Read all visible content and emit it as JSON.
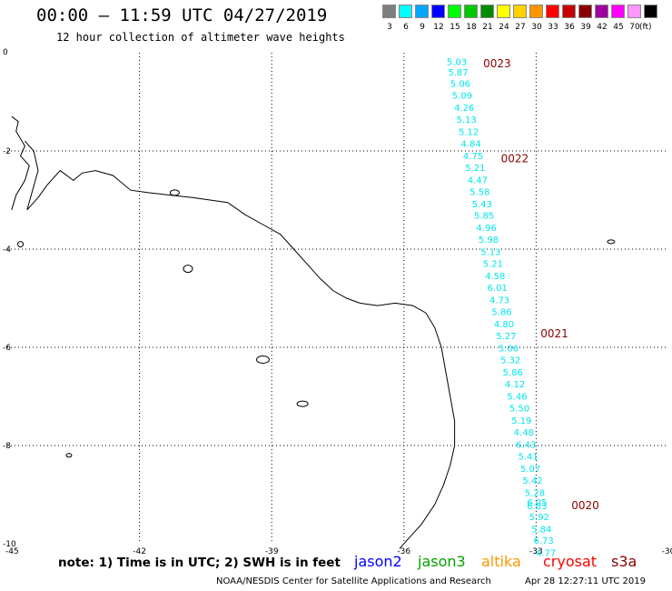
{
  "header": {
    "title": "00:00 – 11:59 UTC 04/27/2019",
    "subtitle": "12 hour collection of altimeter wave heights"
  },
  "color_scale": {
    "unit": "(ft)",
    "bins": [
      {
        "label": "3",
        "color": "#7f7f7f"
      },
      {
        "label": "6",
        "color": "#00ffff"
      },
      {
        "label": "9",
        "color": "#00a8ff"
      },
      {
        "label": "12",
        "color": "#0000ff"
      },
      {
        "label": "15",
        "color": "#00ff00"
      },
      {
        "label": "18",
        "color": "#00c800"
      },
      {
        "label": "21",
        "color": "#008c00"
      },
      {
        "label": "24",
        "color": "#ffff00"
      },
      {
        "label": "27",
        "color": "#ffd200"
      },
      {
        "label": "30",
        "color": "#ff9600"
      },
      {
        "label": "33",
        "color": "#ff0000"
      },
      {
        "label": "36",
        "color": "#c80000"
      },
      {
        "label": "39",
        "color": "#8c0000"
      },
      {
        "label": "42",
        "color": "#a000a0"
      },
      {
        "label": "45",
        "color": "#ff00ff"
      },
      {
        "label": "70",
        "color": "#ff96ff"
      },
      {
        "label": "",
        "color": "#000000"
      }
    ]
  },
  "map": {
    "lon_ticks": [
      "-45",
      "-42",
      "-39",
      "-36",
      "-33",
      "-30"
    ],
    "lat_ticks": [
      "0",
      "-2",
      "-4",
      "-6",
      "-8",
      "-10"
    ],
    "lon_range": [
      -45,
      -30
    ],
    "lat_range": [
      -10,
      0
    ],
    "measurement_color": "#00e5ee",
    "time_label_color": "#8b0000",
    "measurements": [
      {
        "lon": -34.8,
        "lat": -0.18,
        "value": "5.03"
      },
      {
        "lon": -34.77,
        "lat": -0.39,
        "value": "5.87"
      },
      {
        "lon": -34.72,
        "lat": -0.62,
        "value": "5.06"
      },
      {
        "lon": -34.68,
        "lat": -0.86,
        "value": "5.09"
      },
      {
        "lon": -34.63,
        "lat": -1.11,
        "value": "4.26"
      },
      {
        "lon": -34.58,
        "lat": -1.35,
        "value": "5.13"
      },
      {
        "lon": -34.53,
        "lat": -1.6,
        "value": "5.12"
      },
      {
        "lon": -34.48,
        "lat": -1.84,
        "value": "4.84"
      },
      {
        "lon": -34.43,
        "lat": -2.09,
        "value": "4.75"
      },
      {
        "lon": -34.38,
        "lat": -2.33,
        "value": "5.21"
      },
      {
        "lon": -34.33,
        "lat": -2.58,
        "value": "4.47"
      },
      {
        "lon": -34.28,
        "lat": -2.82,
        "value": "5.58"
      },
      {
        "lon": -34.23,
        "lat": -3.07,
        "value": "5.43"
      },
      {
        "lon": -34.18,
        "lat": -3.31,
        "value": "5.85"
      },
      {
        "lon": -34.13,
        "lat": -3.56,
        "value": "4.96"
      },
      {
        "lon": -34.08,
        "lat": -3.8,
        "value": "5.98"
      },
      {
        "lon": -34.03,
        "lat": -4.05,
        "value": "5.13"
      },
      {
        "lon": -33.98,
        "lat": -4.29,
        "value": "5.21"
      },
      {
        "lon": -33.93,
        "lat": -4.54,
        "value": "4.58"
      },
      {
        "lon": -33.88,
        "lat": -4.78,
        "value": "6.01"
      },
      {
        "lon": -33.83,
        "lat": -5.03,
        "value": "4.73"
      },
      {
        "lon": -33.78,
        "lat": -5.27,
        "value": "5.86"
      },
      {
        "lon": -33.73,
        "lat": -5.52,
        "value": "4.80"
      },
      {
        "lon": -33.68,
        "lat": -5.76,
        "value": "5.27"
      },
      {
        "lon": -33.63,
        "lat": -6.01,
        "value": "5.06"
      },
      {
        "lon": -33.58,
        "lat": -6.25,
        "value": "5.32"
      },
      {
        "lon": -33.53,
        "lat": -6.5,
        "value": "5.86"
      },
      {
        "lon": -33.48,
        "lat": -6.74,
        "value": "4.12"
      },
      {
        "lon": -33.43,
        "lat": -6.99,
        "value": "5.46"
      },
      {
        "lon": -33.38,
        "lat": -7.23,
        "value": "5.50"
      },
      {
        "lon": -33.33,
        "lat": -7.48,
        "value": "5.19"
      },
      {
        "lon": -33.28,
        "lat": -7.72,
        "value": "4.48"
      },
      {
        "lon": -33.23,
        "lat": -7.97,
        "value": "6.43"
      },
      {
        "lon": -33.18,
        "lat": -8.21,
        "value": "5.41"
      },
      {
        "lon": -33.13,
        "lat": -8.46,
        "value": "5.07"
      },
      {
        "lon": -33.08,
        "lat": -8.7,
        "value": "5.42"
      },
      {
        "lon": -33.03,
        "lat": -8.95,
        "value": "5.28"
      },
      {
        "lon": -32.98,
        "lat": -9.15,
        "value": "6.05"
      },
      {
        "lon": -32.98,
        "lat": -9.22,
        "value": "6.03"
      },
      {
        "lon": -32.93,
        "lat": -9.44,
        "value": "5.92"
      },
      {
        "lon": -32.88,
        "lat": -9.69,
        "value": "5.84"
      },
      {
        "lon": -32.83,
        "lat": -9.93,
        "value": "6.73"
      },
      {
        "lon": -32.78,
        "lat": -10.18,
        "value": "4.77"
      }
    ],
    "time_labels": [
      {
        "lon": -34.2,
        "lat": -0.2,
        "text": "0023"
      },
      {
        "lon": -33.8,
        "lat": -2.14,
        "text": "0022"
      },
      {
        "lon": -32.9,
        "lat": -5.7,
        "text": "0021"
      },
      {
        "lon": -32.2,
        "lat": -9.2,
        "text": "0020"
      }
    ]
  },
  "footer": {
    "note": "note:  1) Time is in UTC;  2) SWH is in feet",
    "missions": [
      {
        "name": "jason2",
        "color": "#0000ff"
      },
      {
        "name": "jason3",
        "color": "#00a000"
      },
      {
        "name": "altika",
        "color": "#ff9600"
      },
      {
        "name": "cryosat",
        "color": "#ff0000"
      },
      {
        "name": "s3a",
        "color": "#8b0000"
      }
    ],
    "credit": "NOAA/NESDIS Center for Satellite Applications and Research",
    "timestamp": "Apr 28 12:27:11 UTC 2019"
  }
}
